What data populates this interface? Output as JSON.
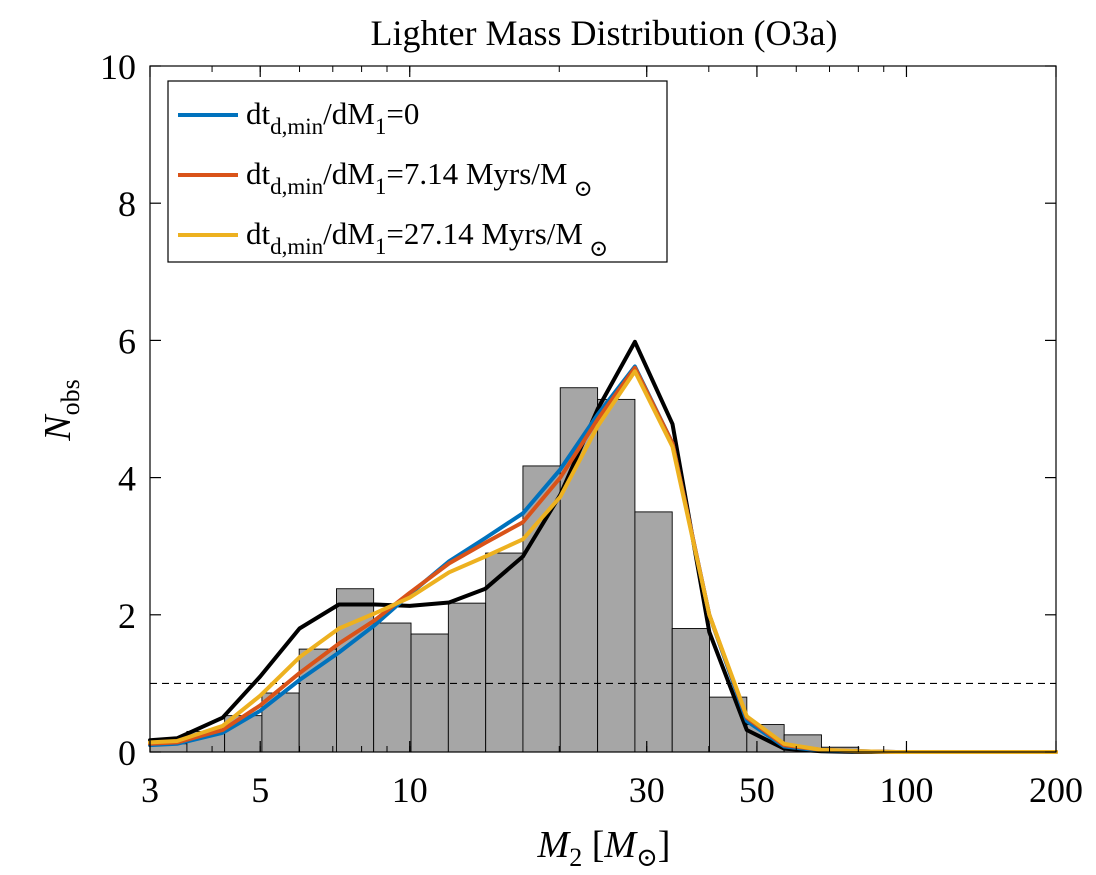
{
  "chart_data": {
    "type": "bar",
    "title": "Lighter Mass Distribution (O3a)",
    "xlabel": {
      "symbol": "M",
      "sub": "2",
      "unit_symbol": "M",
      "unit_sub": "⊙"
    },
    "ylabel": {
      "symbol": "N",
      "sub": "obs"
    },
    "x_scale": "log",
    "xlim": [
      3,
      200
    ],
    "ylim": [
      0,
      10
    ],
    "x_ticks": [
      3,
      5,
      10,
      30,
      50,
      100,
      200
    ],
    "y_ticks": [
      0,
      2,
      4,
      6,
      8,
      10
    ],
    "grid": false,
    "legend_position": "top-left",
    "histogram": {
      "color": "#a6a6a6",
      "bin_edges": [
        3,
        3.56,
        4.24,
        5.04,
        5.99,
        7.12,
        8.46,
        10.06,
        11.96,
        14.22,
        16.9,
        20.09,
        23.89,
        28.4,
        33.76,
        40.13,
        47.71,
        56.72,
        67.43,
        80.16,
        95.3,
        113.3
      ],
      "counts": [
        0.12,
        0.3,
        0.53,
        0.86,
        1.5,
        2.38,
        1.88,
        1.72,
        2.17,
        2.9,
        4.17,
        5.31,
        5.14,
        3.5,
        1.8,
        0.8,
        0.4,
        0.25,
        0.07,
        0.02,
        0.01
      ]
    },
    "threshold": {
      "y": 1,
      "style": "dashed"
    },
    "series": [
      {
        "name": "dt_d,min/dM_1=0",
        "legend": {
          "main": "dt",
          "sub": "d,min",
          "mid": "/dM",
          "sub2": "1",
          "tail": "=0",
          "sun": false
        },
        "color": "#0072bd",
        "x": [
          3,
          3.4,
          4.2,
          5.0,
          6.0,
          7.2,
          8.5,
          10,
          12,
          14.2,
          16.9,
          20.1,
          23.9,
          28.4,
          33.8,
          40.1,
          47.7,
          56.7,
          67.4,
          80.2,
          95.3,
          113.3,
          135,
          160,
          200
        ],
        "y": [
          0.1,
          0.12,
          0.28,
          0.6,
          1.05,
          1.45,
          1.85,
          2.3,
          2.78,
          3.12,
          3.48,
          4.12,
          4.92,
          5.62,
          4.5,
          2.0,
          0.45,
          0.08,
          0.02,
          0.01,
          0.0,
          0.0,
          0.0,
          0.0,
          0.0
        ]
      },
      {
        "name": "dt_d,min/dM_1=7.14 Myrs/M_⊙",
        "legend": {
          "main": "dt",
          "sub": "d,min",
          "mid": "/dM",
          "sub2": "1",
          "tail": "=7.14 Myrs/M",
          "sun": true
        },
        "color": "#d95319",
        "x": [
          3,
          3.4,
          4.2,
          5.0,
          6.0,
          7.2,
          8.5,
          10,
          12,
          14.2,
          16.9,
          20.1,
          23.9,
          28.4,
          33.8,
          40.1,
          47.7,
          56.7,
          67.4,
          80.2,
          95.3,
          113.3,
          135,
          160,
          200
        ],
        "y": [
          0.12,
          0.14,
          0.32,
          0.68,
          1.15,
          1.58,
          1.92,
          2.32,
          2.75,
          3.05,
          3.35,
          4.0,
          4.85,
          5.6,
          4.5,
          2.0,
          0.5,
          0.1,
          0.03,
          0.01,
          0.0,
          0.0,
          0.0,
          0.0,
          0.0
        ]
      },
      {
        "name": "dt_d,min/dM_1=27.14 Myrs/M_⊙",
        "legend": {
          "main": "dt",
          "sub": "d,min",
          "mid": "/dM",
          "sub2": "1",
          "tail": "=27.14 Myrs/M",
          "sun": true
        },
        "color": "#edb120",
        "x": [
          3,
          3.4,
          4.2,
          5.0,
          6.0,
          7.2,
          8.5,
          10,
          12,
          14.2,
          16.9,
          20.1,
          23.9,
          28.4,
          33.8,
          40.1,
          47.7,
          56.7,
          67.4,
          80.2,
          95.3,
          113.3,
          135,
          160,
          200
        ],
        "y": [
          0.14,
          0.16,
          0.38,
          0.82,
          1.38,
          1.8,
          2.02,
          2.25,
          2.62,
          2.85,
          3.1,
          3.72,
          4.75,
          5.55,
          4.45,
          2.0,
          0.52,
          0.12,
          0.03,
          0.01,
          0.0,
          0.0,
          0.0,
          0.0,
          0.0
        ]
      },
      {
        "name": "",
        "legend": null,
        "color": "#000000",
        "x": [
          3,
          3.4,
          4.2,
          5.0,
          6.0,
          7.2,
          8.5,
          10,
          12,
          14.2,
          16.9,
          20.1,
          23.9,
          28.4,
          33.8,
          40.1,
          47.7,
          56.7,
          67.4,
          80.2,
          95.3,
          113.3,
          135,
          160,
          200
        ],
        "y": [
          0.17,
          0.2,
          0.5,
          1.1,
          1.8,
          2.15,
          2.15,
          2.13,
          2.18,
          2.38,
          2.85,
          3.75,
          5.0,
          5.98,
          4.78,
          1.75,
          0.32,
          0.05,
          0.01,
          0.0,
          0.0,
          0.0,
          0.0,
          0.0,
          0.0
        ]
      }
    ]
  }
}
